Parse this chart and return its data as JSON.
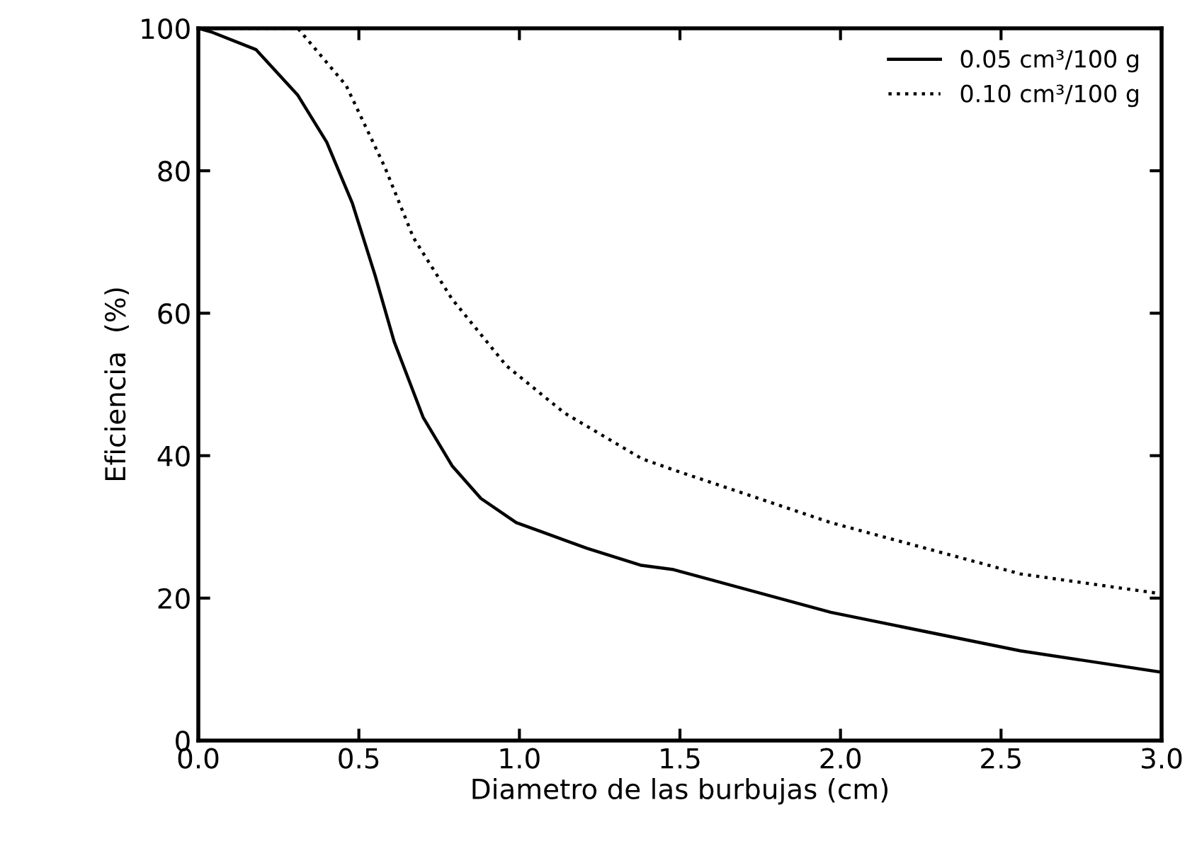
{
  "chart_data": {
    "type": "line",
    "xlabel": "Diametro de las burbujas (cm)",
    "ylabel": "Eficiencia  (%)",
    "xlim": [
      0,
      3
    ],
    "ylim": [
      0,
      100
    ],
    "xticks": [
      {
        "value": 0,
        "label": "0.0"
      },
      {
        "value": 0.5,
        "label": "0.5"
      },
      {
        "value": 1,
        "label": "1.0"
      },
      {
        "value": 1.5,
        "label": "1.5"
      },
      {
        "value": 2,
        "label": "2.0"
      },
      {
        "value": 2.5,
        "label": "2.5"
      },
      {
        "value": 3,
        "label": "3.0"
      }
    ],
    "yticks": [
      0,
      20,
      40,
      60,
      80,
      100
    ],
    "grid": false,
    "legend": "top right",
    "marker": "none",
    "series": [
      {
        "name": "0.05 cm³/100 g",
        "color": "#000000",
        "line_style": "solid",
        "x": [
          0,
          0.04,
          0.18,
          0.31,
          0.4,
          0.48,
          0.55,
          0.61,
          0.7,
          0.79,
          0.88,
          0.99,
          1.21,
          1.38,
          1.48,
          1.97,
          2.56,
          3.0
        ],
        "values": [
          100,
          99.5,
          97,
          90.6,
          84,
          75.4,
          65.4,
          56,
          45.4,
          38.6,
          34,
          30.6,
          27,
          24.6,
          24,
          18,
          12.6,
          9.6
        ]
      },
      {
        "name": "0.10 cm³/100 g",
        "color": "#000000",
        "line_style": "dotted",
        "x": [
          0,
          0.31,
          0.46,
          0.58,
          0.67,
          0.79,
          0.96,
          1.14,
          1.38,
          1.48,
          1.97,
          2.56,
          3.0
        ],
        "values": [
          100,
          100,
          92,
          80.6,
          70.6,
          62,
          52.6,
          46,
          39.6,
          38,
          30.6,
          23.4,
          20.6
        ]
      }
    ]
  }
}
